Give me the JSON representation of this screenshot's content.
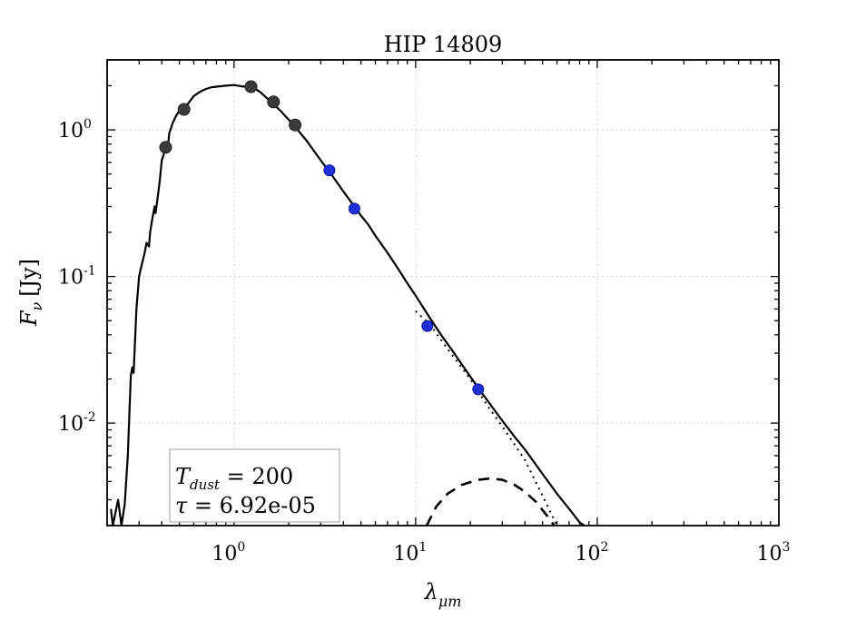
{
  "chart_data": {
    "type": "scatter",
    "title": "HIP 14809",
    "xlabel": {
      "base": "λ",
      "sub": "μm"
    },
    "ylabel": {
      "base": "F",
      "sub": "ν",
      "unit": "[Jy]"
    },
    "xscale": "log",
    "yscale": "log",
    "xlim": [
      0.2,
      1000
    ],
    "ylim": [
      0.002,
      3.0
    ],
    "grid": true,
    "x_ticks": [
      {
        "value": 1,
        "base": "10",
        "exp": "0"
      },
      {
        "value": 10,
        "base": "10",
        "exp": "1"
      },
      {
        "value": 100,
        "base": "10",
        "exp": "2"
      },
      {
        "value": 1000,
        "base": "10",
        "exp": "3"
      }
    ],
    "y_ticks": [
      {
        "value": 1,
        "base": "10",
        "exp": "0"
      },
      {
        "value": 0.1,
        "base": "10",
        "exp": "-1"
      },
      {
        "value": 0.01,
        "base": "10",
        "exp": "-2"
      }
    ],
    "series": [
      {
        "style": "black-solid",
        "points": [
          [
            0.21,
            0.0026
          ],
          [
            0.215,
            0.002
          ],
          [
            0.23,
            0.003
          ],
          [
            0.24,
            0.002
          ],
          [
            0.25,
            0.0028
          ],
          [
            0.26,
            0.006
          ],
          [
            0.265,
            0.011
          ],
          [
            0.27,
            0.021
          ],
          [
            0.275,
            0.024
          ],
          [
            0.28,
            0.022
          ],
          [
            0.29,
            0.06
          ],
          [
            0.3,
            0.1
          ],
          [
            0.31,
            0.12
          ],
          [
            0.32,
            0.14
          ],
          [
            0.33,
            0.17
          ],
          [
            0.34,
            0.16
          ],
          [
            0.345,
            0.2
          ],
          [
            0.355,
            0.25
          ],
          [
            0.365,
            0.3
          ],
          [
            0.37,
            0.27
          ],
          [
            0.38,
            0.35
          ],
          [
            0.39,
            0.45
          ],
          [
            0.4,
            0.62
          ],
          [
            0.41,
            0.68
          ],
          [
            0.42,
            0.75
          ],
          [
            0.43,
            0.72
          ],
          [
            0.44,
            0.95
          ],
          [
            0.46,
            1.12
          ],
          [
            0.48,
            1.25
          ],
          [
            0.5,
            1.35
          ],
          [
            0.53,
            1.42
          ],
          [
            0.56,
            1.52
          ],
          [
            0.6,
            1.7
          ],
          [
            0.65,
            1.82
          ],
          [
            0.7,
            1.9
          ],
          [
            0.75,
            1.95
          ],
          [
            0.8,
            1.97
          ],
          [
            0.9,
            2.0
          ],
          [
            1.0,
            2.02
          ],
          [
            1.1,
            1.98
          ],
          [
            1.2,
            1.96
          ],
          [
            1.3,
            1.92
          ],
          [
            1.4,
            1.8
          ],
          [
            1.6,
            1.55
          ],
          [
            1.8,
            1.35
          ],
          [
            2.1,
            1.1
          ],
          [
            2.5,
            0.85
          ],
          [
            3.0,
            0.62
          ],
          [
            3.5,
            0.48
          ],
          [
            4.0,
            0.38
          ],
          [
            4.6,
            0.3
          ],
          [
            5.0,
            0.26
          ],
          [
            5.5,
            0.225
          ],
          [
            6.0,
            0.19
          ],
          [
            7.0,
            0.145
          ],
          [
            8.0,
            0.113
          ],
          [
            9.0,
            0.09
          ],
          [
            10,
            0.074
          ],
          [
            12,
            0.052
          ],
          [
            14,
            0.039
          ],
          [
            16,
            0.031
          ],
          [
            18,
            0.025
          ],
          [
            22,
            0.0175
          ],
          [
            26,
            0.0132
          ],
          [
            30,
            0.0104
          ],
          [
            35,
            0.0081
          ],
          [
            40,
            0.0066
          ],
          [
            50,
            0.0045
          ],
          [
            60,
            0.0033
          ],
          [
            70,
            0.0026
          ],
          [
            80,
            0.0021
          ],
          [
            85,
            0.002
          ]
        ]
      },
      {
        "style": "black-dotted",
        "points": [
          [
            10,
            0.058
          ],
          [
            12,
            0.047
          ],
          [
            15,
            0.032
          ],
          [
            20,
            0.02
          ],
          [
            25,
            0.013
          ],
          [
            30,
            0.0095
          ],
          [
            40,
            0.0056
          ],
          [
            50,
            0.0032
          ],
          [
            55,
            0.0025
          ],
          [
            60,
            0.002
          ]
        ]
      },
      {
        "style": "black-dashed",
        "points": [
          [
            11.5,
            0.002
          ],
          [
            13,
            0.0027
          ],
          [
            15,
            0.0033
          ],
          [
            18,
            0.0038
          ],
          [
            22,
            0.0041
          ],
          [
            26,
            0.0042
          ],
          [
            30,
            0.0041
          ],
          [
            35,
            0.0038
          ],
          [
            40,
            0.0034
          ],
          [
            46,
            0.0029
          ],
          [
            52,
            0.0024
          ],
          [
            58,
            0.002
          ]
        ]
      },
      {
        "style": "gray-markers",
        "points": [
          [
            0.42,
            0.76
          ],
          [
            0.53,
            1.38
          ],
          [
            1.24,
            1.97
          ],
          [
            1.65,
            1.55
          ],
          [
            2.17,
            1.08
          ]
        ]
      },
      {
        "style": "blue-markers",
        "points": [
          [
            3.35,
            0.53
          ],
          [
            4.6,
            0.29
          ],
          [
            11.6,
            0.046
          ],
          [
            22.1,
            0.017
          ]
        ]
      }
    ],
    "annotation": {
      "line1": {
        "symbol": "T",
        "sub": "dust",
        "rest": " = 200"
      },
      "line2": {
        "symbol": "τ",
        "rest": " = 6.92e-05"
      }
    },
    "colors": {
      "line": "#000000",
      "blue_marker": "#1f2fd8",
      "gray_marker": "#3a3a3a",
      "grid": "#cfcfcf"
    }
  }
}
